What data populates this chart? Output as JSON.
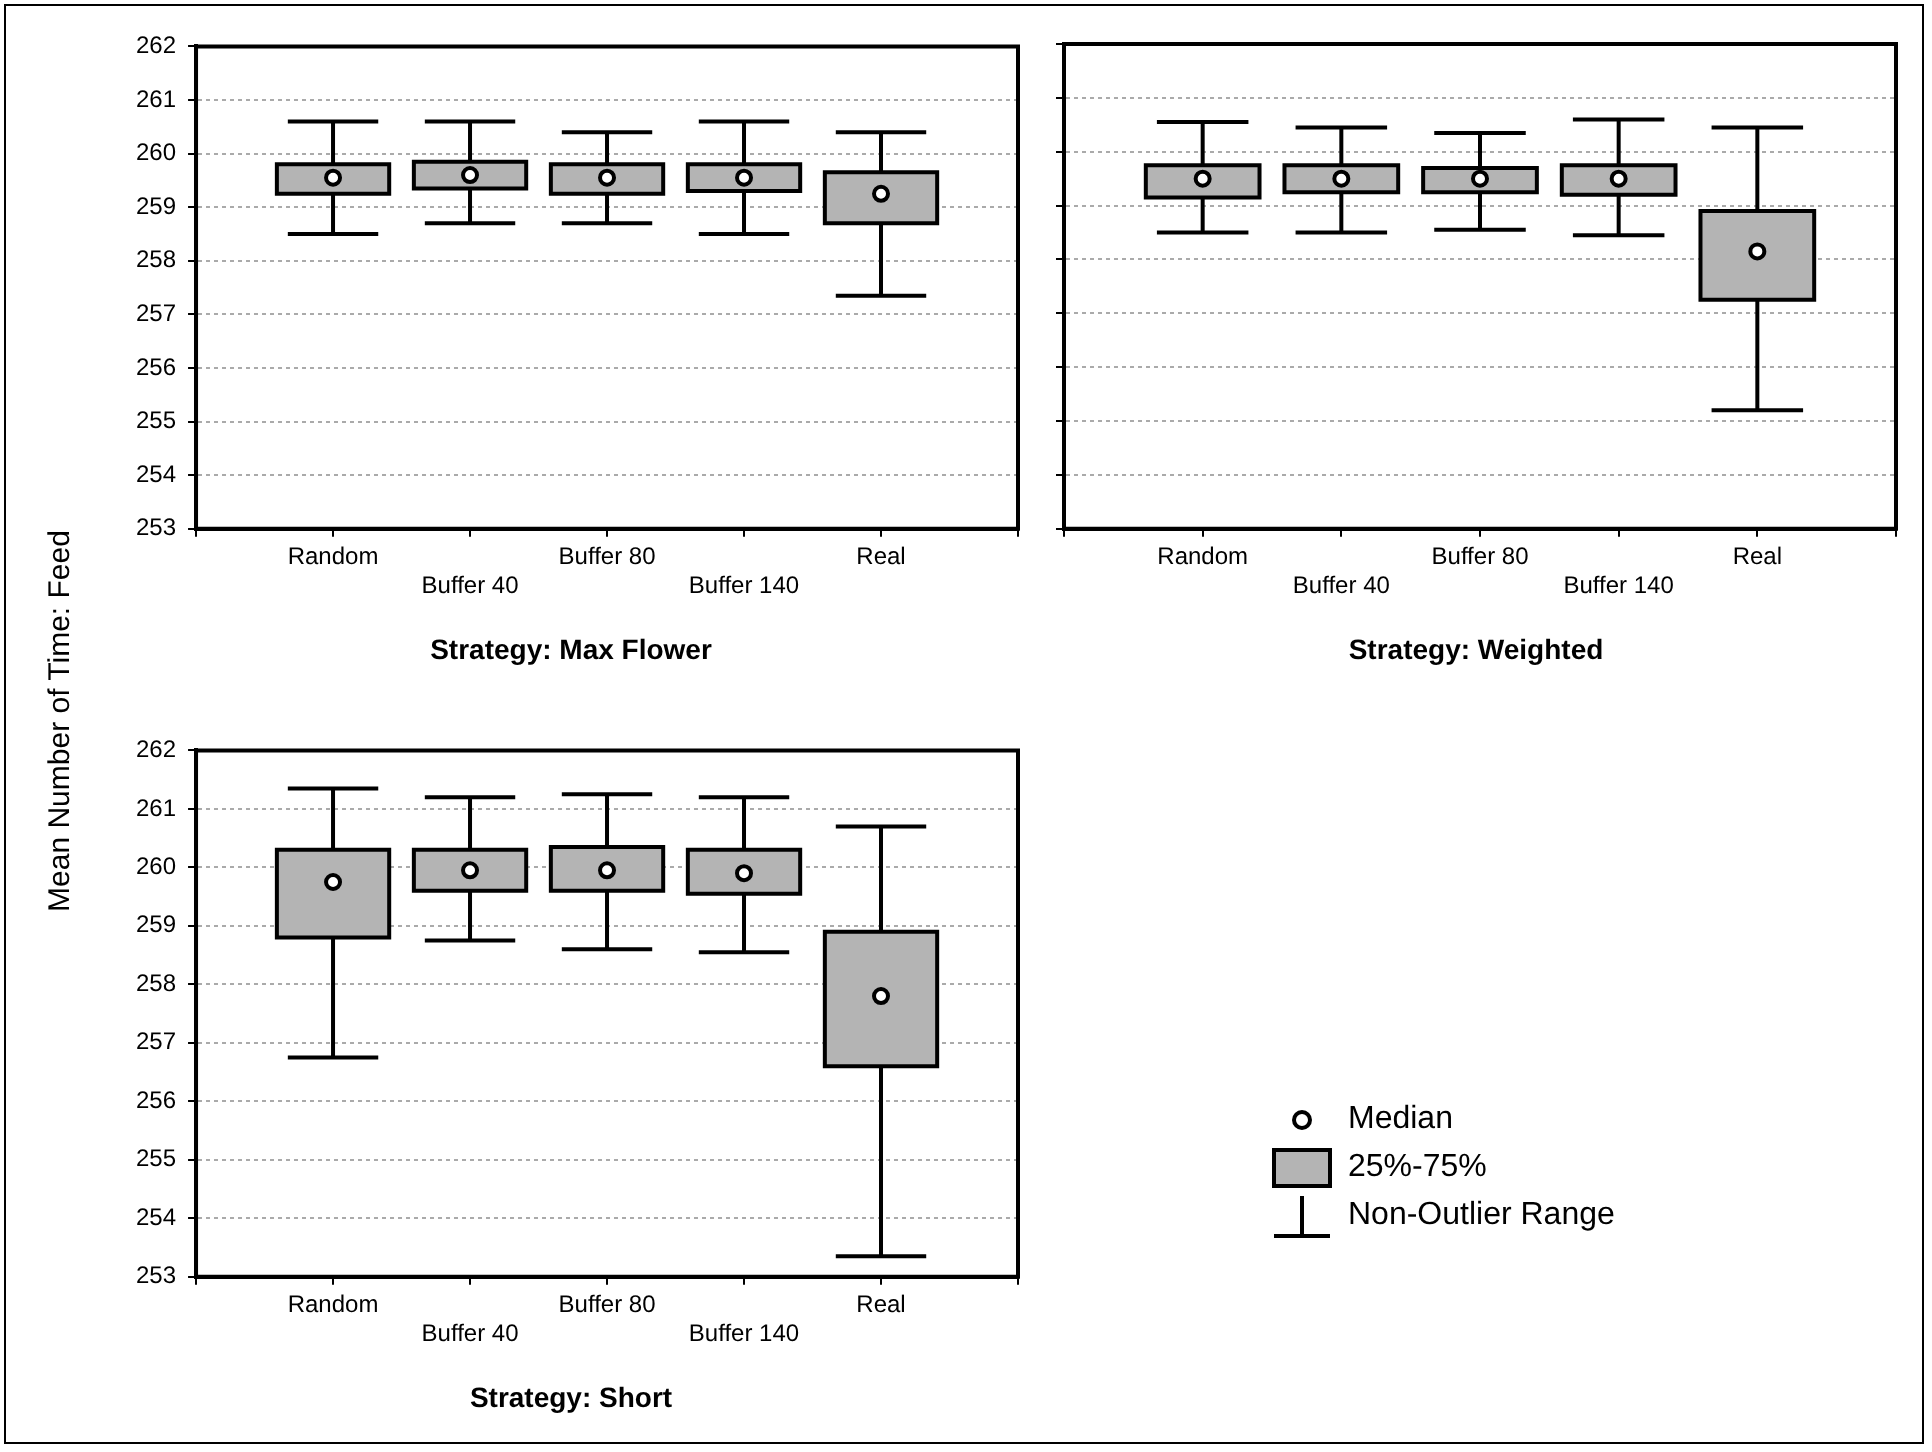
{
  "chart_data": [
    {
      "type": "box",
      "title": "Strategy: Max Flower",
      "ylabel": "Mean Number of Time: Feed",
      "categories": [
        "Random",
        "Buffer 40",
        "Buffer 80",
        "Buffer 140",
        "Real"
      ],
      "ylim": [
        253,
        262
      ],
      "yticks": [
        253,
        254,
        255,
        256,
        257,
        258,
        259,
        260,
        261,
        262
      ],
      "grid": "y",
      "marker": "circle",
      "boxes": [
        {
          "low": 258.5,
          "q1": 259.25,
          "median": 259.55,
          "q3": 259.8,
          "high": 260.6
        },
        {
          "low": 258.7,
          "q1": 259.35,
          "median": 259.6,
          "q3": 259.85,
          "high": 260.6
        },
        {
          "low": 258.7,
          "q1": 259.25,
          "median": 259.55,
          "q3": 259.8,
          "high": 260.4
        },
        {
          "low": 258.5,
          "q1": 259.3,
          "median": 259.55,
          "q3": 259.8,
          "high": 260.6
        },
        {
          "low": 257.35,
          "q1": 258.7,
          "median": 259.25,
          "q3": 259.65,
          "high": 260.4
        }
      ]
    },
    {
      "type": "box",
      "title": "Strategy: Weighted",
      "categories": [
        "Random",
        "Buffer 40",
        "Buffer 80",
        "Buffer 140",
        "Real"
      ],
      "ylim": [
        253,
        262
      ],
      "yticks": [
        253,
        254,
        255,
        256,
        257,
        258,
        259,
        260,
        261,
        262
      ],
      "grid": "y",
      "marker": "circle",
      "tick_labels": "x",
      "boxes": [
        {
          "low": 258.5,
          "q1": 259.15,
          "median": 259.5,
          "q3": 259.75,
          "high": 260.55
        },
        {
          "low": 258.5,
          "q1": 259.25,
          "median": 259.5,
          "q3": 259.75,
          "high": 260.45
        },
        {
          "low": 258.55,
          "q1": 259.25,
          "median": 259.5,
          "q3": 259.7,
          "high": 260.35
        },
        {
          "low": 258.45,
          "q1": 259.2,
          "median": 259.5,
          "q3": 259.75,
          "high": 260.6
        },
        {
          "low": 255.2,
          "q1": 257.25,
          "median": 258.15,
          "q3": 258.9,
          "high": 260.45
        }
      ]
    },
    {
      "type": "box",
      "title": "Strategy: Short",
      "categories": [
        "Random",
        "Buffer 40",
        "Buffer 80",
        "Buffer 140",
        "Real"
      ],
      "ylim": [
        253,
        262
      ],
      "yticks": [
        253,
        254,
        255,
        256,
        257,
        258,
        259,
        260,
        261,
        262
      ],
      "grid": "y",
      "marker": "circle",
      "annotations": [
        "Median",
        "25%-75%",
        "Non-Outlier Range"
      ],
      "boxes": [
        {
          "low": 256.75,
          "q1": 258.8,
          "median": 259.75,
          "q3": 260.3,
          "high": 261.35
        },
        {
          "low": 258.75,
          "q1": 259.6,
          "median": 259.95,
          "q3": 260.3,
          "high": 261.2
        },
        {
          "low": 258.6,
          "q1": 259.6,
          "median": 259.95,
          "q3": 260.35,
          "high": 261.25
        },
        {
          "low": 258.55,
          "q1": 259.55,
          "median": 259.9,
          "q3": 260.3,
          "high": 261.2
        },
        {
          "low": 253.35,
          "q1": 256.6,
          "median": 257.8,
          "q3": 258.9,
          "high": 260.7
        }
      ]
    }
  ]
}
